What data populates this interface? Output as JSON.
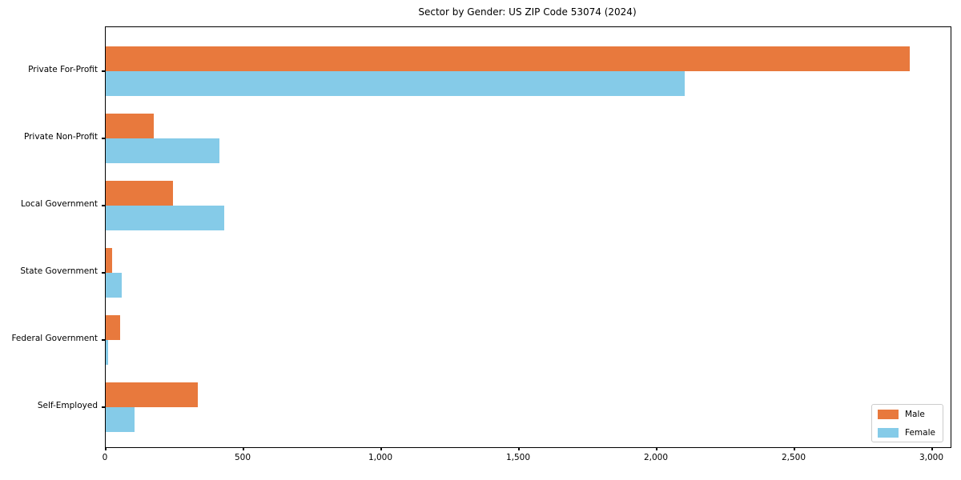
{
  "chart_data": {
    "type": "bar",
    "orientation": "horizontal",
    "title": "Sector by Gender: US ZIP Code 53074 (2024)",
    "categories": [
      "Private For-Profit",
      "Private Non-Profit",
      "Local Government",
      "State Government",
      "Federal Government",
      "Self-Employed"
    ],
    "series": [
      {
        "name": "Male",
        "color": "#e8793d",
        "values": [
          2918,
          174,
          245,
          23,
          52,
          334
        ]
      },
      {
        "name": "Female",
        "color": "#85cbe8",
        "values": [
          2102,
          412,
          430,
          58,
          9,
          106
        ]
      }
    ],
    "x_ticks": [
      0,
      500,
      1000,
      1500,
      2000,
      2500,
      3000
    ],
    "x_tick_labels": [
      "0",
      "500",
      "1,000",
      "1,500",
      "2,000",
      "2,500",
      "3,000"
    ],
    "xlim": [
      0,
      3067
    ],
    "xlabel": "",
    "ylabel": "",
    "grid": false,
    "legend_position": "lower right",
    "spine_color": "#000000",
    "text_color": "#000000",
    "background_color": "#ffffff"
  }
}
